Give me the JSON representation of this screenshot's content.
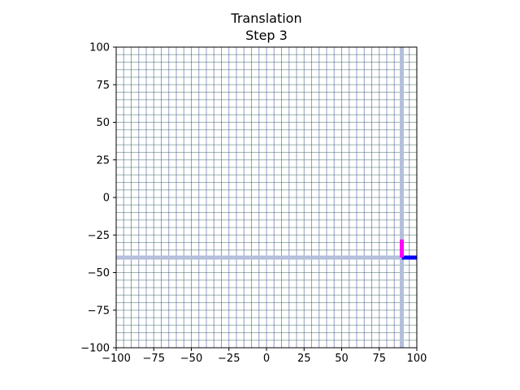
{
  "chart_data": {
    "type": "line",
    "title": "Translation",
    "subtitle": "Step 3",
    "xlabel": "",
    "ylabel": "",
    "xlim": [
      -100,
      100
    ],
    "ylim": [
      -100,
      100
    ],
    "xticks": [
      -100,
      -75,
      -50,
      -25,
      0,
      25,
      50,
      75,
      100
    ],
    "yticks": [
      -100,
      -75,
      -50,
      -25,
      0,
      25,
      50,
      75,
      100
    ],
    "xtick_labels": [
      "−100",
      "−75",
      "−50",
      "−25",
      "0",
      "25",
      "50",
      "75",
      "100"
    ],
    "ytick_labels": [
      "−100",
      "−75",
      "−50",
      "−25",
      "0",
      "25",
      "50",
      "75",
      "100"
    ],
    "grid": true,
    "grid_spacing": 5,
    "colors": {
      "grid_vertical": "#3b4a9a",
      "grid_horizontal": "#4f7a63",
      "highlight": "#b4bfdc",
      "x_basis": "#0000ff",
      "y_basis": "#ff00ff"
    },
    "highlight_lines": {
      "x": 90,
      "y": -40
    },
    "series": [
      {
        "values": [
          [
            90,
            -40
          ],
          [
            100,
            -40
          ]
        ]
      },
      {
        "values": [
          [
            90,
            -40
          ],
          [
            90,
            -28
          ]
        ]
      }
    ]
  }
}
